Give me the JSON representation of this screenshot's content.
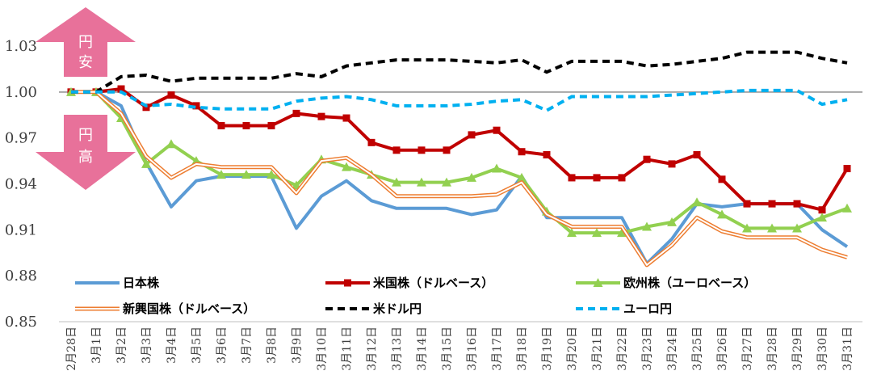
{
  "chart_data": {
    "type": "line",
    "title": "",
    "xlabel": "",
    "ylabel": "",
    "ylim": [
      0.85,
      1.04
    ],
    "yticks": [
      0.85,
      0.88,
      0.91,
      0.94,
      0.97,
      1.0,
      1.03
    ],
    "ytick_labels": [
      "0.85",
      "0.88",
      "0.91",
      "0.94",
      "0.97",
      "1.00",
      "1.03"
    ],
    "reference_line": 1.0,
    "grid": false,
    "legend_position": "bottom-inside",
    "categories": [
      "2月28日",
      "3月1日",
      "3月2日",
      "3月3日",
      "3月4日",
      "3月5日",
      "3月6日",
      "3月7日",
      "3月8日",
      "3月9日",
      "3月10日",
      "3月11日",
      "3月12日",
      "3月13日",
      "3月14日",
      "3月15日",
      "3月16日",
      "3月17日",
      "3月18日",
      "3月19日",
      "3月20日",
      "3月21日",
      "3月22日",
      "3月23日",
      "3月24日",
      "3月25日",
      "3月26日",
      "3月27日",
      "3月28日",
      "3月29日",
      "3月30日",
      "3月31日"
    ],
    "annotations": {
      "up_arrow_text": [
        "円",
        "安"
      ],
      "down_arrow_text": [
        "円",
        "高"
      ],
      "arrow_color": "#e8719a"
    },
    "series": [
      {
        "name": "日本株",
        "color": "#5b9bd5",
        "style": "solid",
        "values": [
          1.0,
          1.0,
          0.991,
          0.954,
          0.925,
          0.942,
          0.945,
          0.945,
          0.945,
          0.911,
          0.932,
          0.942,
          0.929,
          0.924,
          0.924,
          0.924,
          0.92,
          0.923,
          0.945,
          0.918,
          0.918,
          0.918,
          0.918,
          0.888,
          0.904,
          0.927,
          0.925,
          0.927,
          0.927,
          0.927,
          0.91,
          0.899
        ]
      },
      {
        "name": "米国株（ドルベース）",
        "color": "#c00000",
        "style": "solid-square",
        "values": [
          1.0,
          1.0,
          1.002,
          0.99,
          0.998,
          0.991,
          0.978,
          0.978,
          0.978,
          0.986,
          0.984,
          0.983,
          0.967,
          0.962,
          0.962,
          0.962,
          0.972,
          0.975,
          0.961,
          0.959,
          0.944,
          0.944,
          0.944,
          0.956,
          0.953,
          0.959,
          0.943,
          0.927,
          0.927,
          0.927,
          0.923,
          0.95
        ]
      },
      {
        "name": "欧州株（ユーロベース）",
        "color": "#92d050",
        "style": "solid-triangle",
        "values": [
          1.0,
          1.0,
          0.983,
          0.953,
          0.966,
          0.955,
          0.946,
          0.946,
          0.946,
          0.939,
          0.956,
          0.951,
          0.946,
          0.941,
          0.941,
          0.941,
          0.944,
          0.95,
          0.944,
          0.922,
          0.908,
          0.908,
          0.908,
          0.912,
          0.915,
          0.928,
          0.92,
          0.911,
          0.911,
          0.911,
          0.918,
          0.924
        ]
      },
      {
        "name": "新興国株（ドルベース）",
        "color": "#ed7d31",
        "style": "double",
        "values": [
          1.0,
          1.0,
          0.986,
          0.958,
          0.944,
          0.953,
          0.951,
          0.951,
          0.951,
          0.934,
          0.955,
          0.957,
          0.946,
          0.932,
          0.932,
          0.932,
          0.932,
          0.933,
          0.941,
          0.92,
          0.912,
          0.912,
          0.912,
          0.887,
          0.9,
          0.918,
          0.909,
          0.905,
          0.905,
          0.905,
          0.897,
          0.892
        ]
      },
      {
        "name": "米ドル円",
        "color": "#000000",
        "style": "dashed",
        "values": [
          1.0,
          1.0,
          1.01,
          1.011,
          1.007,
          1.009,
          1.009,
          1.009,
          1.009,
          1.012,
          1.01,
          1.017,
          1.019,
          1.021,
          1.021,
          1.021,
          1.02,
          1.019,
          1.021,
          1.013,
          1.02,
          1.02,
          1.02,
          1.017,
          1.018,
          1.02,
          1.022,
          1.026,
          1.026,
          1.026,
          1.022,
          1.019
        ]
      },
      {
        "name": "ユーロ円",
        "color": "#00b0f0",
        "style": "dashed",
        "values": [
          1.0,
          1.0,
          1.0,
          0.991,
          0.992,
          0.99,
          0.989,
          0.989,
          0.989,
          0.994,
          0.996,
          0.997,
          0.995,
          0.991,
          0.991,
          0.991,
          0.992,
          0.994,
          0.995,
          0.988,
          0.997,
          0.997,
          0.997,
          0.997,
          0.998,
          0.999,
          1.0,
          1.001,
          1.001,
          1.001,
          0.992,
          0.995
        ]
      }
    ]
  }
}
